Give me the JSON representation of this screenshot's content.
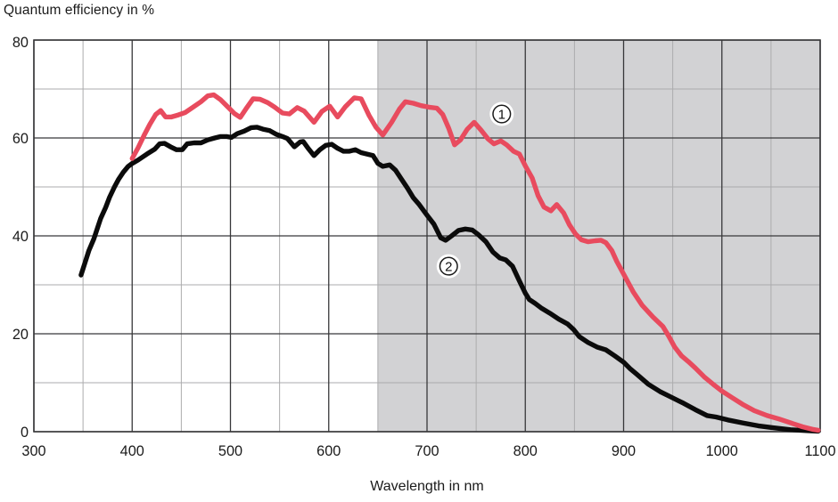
{
  "chart_data": {
    "type": "line",
    "title": "",
    "ylabel": "Quantum efficiency in %",
    "xlabel": "Wavelength in nm",
    "xlim": [
      300,
      1100
    ],
    "ylim": [
      0,
      80
    ],
    "grid": true,
    "x_tick_values": [
      300,
      400,
      500,
      600,
      700,
      800,
      900,
      1000,
      1100
    ],
    "x_tick_labels": [
      "300",
      "400",
      "500",
      "600",
      "700",
      "800",
      "900",
      "1000",
      "1100"
    ],
    "x_minor_ticks": [
      350,
      450,
      550,
      650,
      750,
      850,
      950,
      1050
    ],
    "y_tick_values": [
      0,
      20,
      40,
      60,
      80
    ],
    "y_tick_labels": [
      "0",
      "20",
      "40",
      "60",
      "80"
    ],
    "y_minor_ticks": [
      10,
      30,
      50,
      70
    ],
    "shaded_region": {
      "from": 650,
      "to": 1100,
      "color": "#d2d2d4"
    },
    "colors": {
      "major_grid": "#38383a",
      "minor_grid": "#ababad",
      "frame": "#38383a",
      "text": "#1a1a1a"
    },
    "series": [
      {
        "name": "curve-1",
        "color": "#e84b5e",
        "marker": {
          "text": "1",
          "x": 776,
          "y": 64.9
        },
        "points": [
          [
            400,
            55.8
          ],
          [
            406,
            58.0
          ],
          [
            412,
            60.5
          ],
          [
            418,
            62.8
          ],
          [
            424,
            64.8
          ],
          [
            429,
            65.6
          ],
          [
            434,
            64.3
          ],
          [
            440,
            64.3
          ],
          [
            447,
            64.7
          ],
          [
            454,
            65.2
          ],
          [
            462,
            66.3
          ],
          [
            470,
            67.4
          ],
          [
            477,
            68.6
          ],
          [
            483,
            68.8
          ],
          [
            490,
            67.8
          ],
          [
            497,
            66.4
          ],
          [
            504,
            65.0
          ],
          [
            510,
            64.2
          ],
          [
            517,
            66.3
          ],
          [
            523,
            68.0
          ],
          [
            530,
            67.9
          ],
          [
            538,
            67.2
          ],
          [
            545,
            66.3
          ],
          [
            553,
            65.1
          ],
          [
            560,
            64.9
          ],
          [
            568,
            66.2
          ],
          [
            575,
            65.5
          ],
          [
            585,
            63.2
          ],
          [
            593,
            65.4
          ],
          [
            601,
            66.5
          ],
          [
            609,
            64.3
          ],
          [
            617,
            66.4
          ],
          [
            626,
            68.2
          ],
          [
            633,
            68.0
          ],
          [
            641,
            64.6
          ],
          [
            648,
            62.2
          ],
          [
            655,
            60.6
          ],
          [
            664,
            63.2
          ],
          [
            672,
            65.9
          ],
          [
            678,
            67.4
          ],
          [
            686,
            67.1
          ],
          [
            694,
            66.6
          ],
          [
            702,
            66.3
          ],
          [
            710,
            66.1
          ],
          [
            716,
            64.8
          ],
          [
            722,
            62.0
          ],
          [
            728,
            58.6
          ],
          [
            734,
            59.6
          ],
          [
            741,
            61.8
          ],
          [
            748,
            63.2
          ],
          [
            755,
            61.6
          ],
          [
            762,
            59.8
          ],
          [
            768,
            58.8
          ],
          [
            775,
            59.4
          ],
          [
            781,
            58.6
          ],
          [
            788,
            57.3
          ],
          [
            794,
            56.7
          ],
          [
            800,
            54.3
          ],
          [
            807,
            51.8
          ],
          [
            813,
            48.2
          ],
          [
            819,
            45.9
          ],
          [
            826,
            45.1
          ],
          [
            832,
            46.4
          ],
          [
            839,
            44.7
          ],
          [
            845,
            42.2
          ],
          [
            851,
            40.4
          ],
          [
            857,
            39.2
          ],
          [
            864,
            38.8
          ],
          [
            871,
            39.0
          ],
          [
            877,
            39.1
          ],
          [
            882,
            38.6
          ],
          [
            888,
            37.0
          ],
          [
            893,
            34.8
          ],
          [
            900,
            32.2
          ],
          [
            910,
            28.5
          ],
          [
            919,
            25.8
          ],
          [
            930,
            23.4
          ],
          [
            940,
            21.5
          ],
          [
            946,
            19.5
          ],
          [
            952,
            17.3
          ],
          [
            959,
            15.5
          ],
          [
            966,
            14.3
          ],
          [
            973,
            13.0
          ],
          [
            982,
            11.2
          ],
          [
            991,
            9.7
          ],
          [
            1000,
            8.3
          ],
          [
            1010,
            7.0
          ],
          [
            1021,
            5.6
          ],
          [
            1033,
            4.3
          ],
          [
            1046,
            3.3
          ],
          [
            1058,
            2.6
          ],
          [
            1070,
            1.8
          ],
          [
            1082,
            1.0
          ],
          [
            1092,
            0.5
          ],
          [
            1098,
            0.3
          ]
        ]
      },
      {
        "name": "curve-2",
        "color": "#0b0b0b",
        "marker": {
          "text": "2",
          "x": 722,
          "y": 33.8
        },
        "points": [
          [
            348,
            32.0
          ],
          [
            352,
            34.5
          ],
          [
            356,
            37.0
          ],
          [
            361,
            39.4
          ],
          [
            365,
            41.8
          ],
          [
            368,
            43.6
          ],
          [
            373,
            45.8
          ],
          [
            377,
            47.9
          ],
          [
            382,
            50.0
          ],
          [
            386,
            51.5
          ],
          [
            391,
            53.0
          ],
          [
            396,
            54.2
          ],
          [
            400,
            54.8
          ],
          [
            406,
            55.5
          ],
          [
            415,
            56.7
          ],
          [
            423,
            57.7
          ],
          [
            428,
            58.8
          ],
          [
            433,
            58.9
          ],
          [
            439,
            58.2
          ],
          [
            445,
            57.6
          ],
          [
            451,
            57.6
          ],
          [
            456,
            58.8
          ],
          [
            463,
            59.0
          ],
          [
            470,
            59.0
          ],
          [
            477,
            59.6
          ],
          [
            484,
            60.0
          ],
          [
            490,
            60.3
          ],
          [
            496,
            60.3
          ],
          [
            501,
            60.1
          ],
          [
            507,
            60.9
          ],
          [
            514,
            61.4
          ],
          [
            521,
            62.1
          ],
          [
            527,
            62.2
          ],
          [
            533,
            61.8
          ],
          [
            540,
            61.5
          ],
          [
            547,
            60.7
          ],
          [
            553,
            60.3
          ],
          [
            558,
            59.9
          ],
          [
            565,
            58.2
          ],
          [
            571,
            59.2
          ],
          [
            574,
            59.3
          ],
          [
            579,
            57.9
          ],
          [
            585,
            56.4
          ],
          [
            591,
            57.6
          ],
          [
            597,
            58.5
          ],
          [
            603,
            58.7
          ],
          [
            609,
            57.9
          ],
          [
            615,
            57.3
          ],
          [
            621,
            57.3
          ],
          [
            627,
            57.6
          ],
          [
            633,
            57.0
          ],
          [
            639,
            56.7
          ],
          [
            645,
            56.4
          ],
          [
            650,
            54.8
          ],
          [
            655,
            54.2
          ],
          [
            662,
            54.5
          ],
          [
            668,
            53.4
          ],
          [
            674,
            51.6
          ],
          [
            680,
            49.8
          ],
          [
            686,
            47.8
          ],
          [
            692,
            46.4
          ],
          [
            699,
            44.5
          ],
          [
            707,
            42.4
          ],
          [
            714,
            39.6
          ],
          [
            719,
            39.1
          ],
          [
            725,
            40.0
          ],
          [
            732,
            41.1
          ],
          [
            739,
            41.4
          ],
          [
            746,
            41.2
          ],
          [
            752,
            40.3
          ],
          [
            760,
            38.8
          ],
          [
            767,
            36.7
          ],
          [
            774,
            35.5
          ],
          [
            780,
            35.1
          ],
          [
            787,
            33.8
          ],
          [
            794,
            30.8
          ],
          [
            800,
            28.3
          ],
          [
            804,
            27.0
          ],
          [
            810,
            26.2
          ],
          [
            816,
            25.3
          ],
          [
            825,
            24.2
          ],
          [
            834,
            23.0
          ],
          [
            843,
            22.0
          ],
          [
            849,
            20.9
          ],
          [
            855,
            19.4
          ],
          [
            864,
            18.2
          ],
          [
            873,
            17.3
          ],
          [
            882,
            16.7
          ],
          [
            891,
            15.5
          ],
          [
            900,
            14.2
          ],
          [
            907,
            12.8
          ],
          [
            913,
            11.8
          ],
          [
            925,
            9.7
          ],
          [
            937,
            8.2
          ],
          [
            949,
            7.0
          ],
          [
            961,
            5.8
          ],
          [
            973,
            4.5
          ],
          [
            985,
            3.3
          ],
          [
            994,
            3.0
          ],
          [
            1006,
            2.4
          ],
          [
            1021,
            1.8
          ],
          [
            1037,
            1.2
          ],
          [
            1052,
            0.8
          ],
          [
            1070,
            0.4
          ],
          [
            1088,
            0.2
          ],
          [
            1098,
            0.1
          ]
        ]
      }
    ]
  }
}
